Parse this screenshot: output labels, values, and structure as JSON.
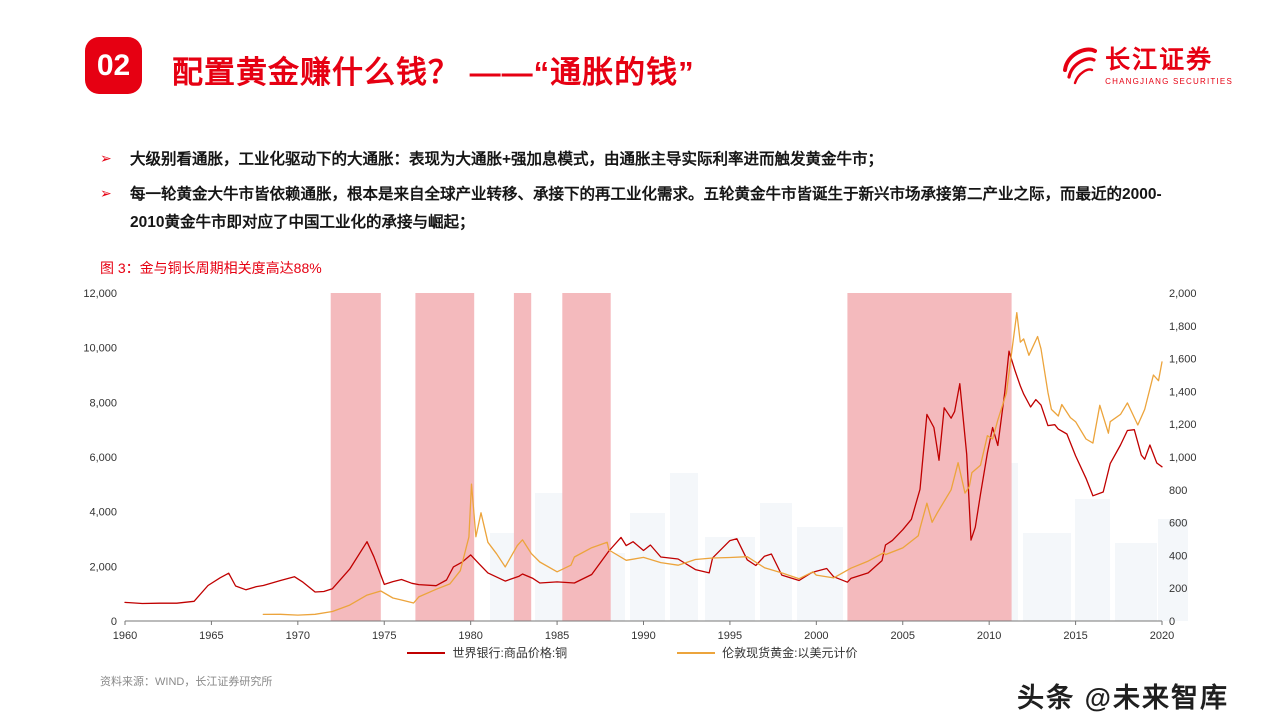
{
  "header": {
    "slide_number": "02",
    "title": "配置黄金赚什么钱？ ——“通胀的钱”",
    "logo": {
      "name": "长江证券",
      "subtitle": "CHANGJIANG SECURITIES"
    }
  },
  "bullet_marker": "➢",
  "bullets": [
    "大级别看通胀，工业化驱动下的大通胀：表现为大通胀+强加息模式，由通胀主导实际利率进而触发黄金牛市；",
    "每一轮黄金大牛市皆依赖通胀，根本是来自全球产业转移、承接下的再工业化需求。五轮黄金牛市皆诞生于新兴市场承接第二产业之际，而最近的2000-2010黄金牛市即对应了中国工业化的承接与崛起；"
  ],
  "figure": {
    "title": "图 3：金与铜长周期相关度高达88%"
  },
  "source": "资料来源：WIND，长江证券研究所",
  "watermark": "头条 @未来智库",
  "colors": {
    "accent_red": "#e60012",
    "copper_line": "#c00000",
    "gold_line": "#eca43c",
    "band_fill": "#f4babd"
  },
  "chart_data": {
    "type": "line",
    "title": "金与铜长周期相关度高达88%",
    "grid": false,
    "legend_position": "bottom",
    "x_axis": {
      "min": 1960,
      "max": 2020,
      "step": 5
    },
    "left_axis": {
      "min": 0,
      "max": 12000,
      "step": 2000
    },
    "right_axis": {
      "min": 0,
      "max": 2000,
      "step": 200
    },
    "band_color": "#f4babd",
    "bands": [
      [
        1971.9,
        1974.8
      ],
      [
        1976.8,
        1980.2
      ],
      [
        1982.5,
        1983.5
      ],
      [
        1985.3,
        1988.1
      ],
      [
        2001.8,
        2011.3
      ]
    ],
    "series": [
      {
        "key": "copper",
        "name": "世界银行:商品价格:铜",
        "axis": "left",
        "color": "#c00000",
        "data": [
          [
            1960,
            680
          ],
          [
            1961,
            640
          ],
          [
            1962,
            650
          ],
          [
            1963,
            650
          ],
          [
            1964,
            720
          ],
          [
            1964.8,
            1300
          ],
          [
            1965.5,
            1580
          ],
          [
            1966,
            1750
          ],
          [
            1966.4,
            1280
          ],
          [
            1967,
            1140
          ],
          [
            1967.6,
            1260
          ],
          [
            1968,
            1300
          ],
          [
            1969,
            1480
          ],
          [
            1969.8,
            1620
          ],
          [
            1970.3,
            1420
          ],
          [
            1971,
            1060
          ],
          [
            1971.5,
            1080
          ],
          [
            1972,
            1180
          ],
          [
            1973,
            1900
          ],
          [
            1974,
            2900
          ],
          [
            1974.4,
            2350
          ],
          [
            1975,
            1340
          ],
          [
            1975.5,
            1440
          ],
          [
            1976,
            1520
          ],
          [
            1976.6,
            1380
          ],
          [
            1977,
            1330
          ],
          [
            1978,
            1290
          ],
          [
            1978.6,
            1500
          ],
          [
            1979,
            1980
          ],
          [
            1979.5,
            2150
          ],
          [
            1980,
            2420
          ],
          [
            1980.5,
            2080
          ],
          [
            1981,
            1760
          ],
          [
            1982,
            1460
          ],
          [
            1982.8,
            1640
          ],
          [
            1983,
            1720
          ],
          [
            1983.6,
            1560
          ],
          [
            1984,
            1390
          ],
          [
            1985,
            1430
          ],
          [
            1986,
            1390
          ],
          [
            1987,
            1700
          ],
          [
            1988,
            2560
          ],
          [
            1988.7,
            3060
          ],
          [
            1989,
            2760
          ],
          [
            1989.4,
            2900
          ],
          [
            1990,
            2580
          ],
          [
            1990.4,
            2780
          ],
          [
            1991,
            2340
          ],
          [
            1992,
            2270
          ],
          [
            1993,
            1880
          ],
          [
            1993.8,
            1760
          ],
          [
            1994,
            2310
          ],
          [
            1995,
            2940
          ],
          [
            1995.4,
            3010
          ],
          [
            1996,
            2240
          ],
          [
            1996.5,
            2030
          ],
          [
            1997,
            2370
          ],
          [
            1997.4,
            2450
          ],
          [
            1998,
            1680
          ],
          [
            1999,
            1480
          ],
          [
            1999.7,
            1760
          ],
          [
            2000,
            1820
          ],
          [
            2000.6,
            1920
          ],
          [
            2001,
            1620
          ],
          [
            2001.8,
            1420
          ],
          [
            2002,
            1560
          ],
          [
            2003,
            1760
          ],
          [
            2003.8,
            2210
          ],
          [
            2004,
            2780
          ],
          [
            2004.4,
            2950
          ],
          [
            2005,
            3340
          ],
          [
            2005.5,
            3720
          ],
          [
            2006,
            4820
          ],
          [
            2006.4,
            7560
          ],
          [
            2006.8,
            7080
          ],
          [
            2007.1,
            5880
          ],
          [
            2007.4,
            7800
          ],
          [
            2007.8,
            7420
          ],
          [
            2008,
            7660
          ],
          [
            2008.3,
            8680
          ],
          [
            2008.7,
            6100
          ],
          [
            2008.95,
            2960
          ],
          [
            2009.2,
            3430
          ],
          [
            2009.5,
            4640
          ],
          [
            2009.9,
            6150
          ],
          [
            2010.2,
            7080
          ],
          [
            2010.5,
            6420
          ],
          [
            2010.9,
            8350
          ],
          [
            2011.15,
            9870
          ],
          [
            2011.5,
            9150
          ],
          [
            2011.8,
            8600
          ],
          [
            2012,
            8300
          ],
          [
            2012.4,
            7830
          ],
          [
            2012.7,
            8100
          ],
          [
            2013,
            7900
          ],
          [
            2013.4,
            7150
          ],
          [
            2013.8,
            7180
          ],
          [
            2014,
            7020
          ],
          [
            2014.5,
            6840
          ],
          [
            2015,
            6040
          ],
          [
            2015.6,
            5220
          ],
          [
            2016,
            4580
          ],
          [
            2016.6,
            4720
          ],
          [
            2017,
            5760
          ],
          [
            2017.6,
            6440
          ],
          [
            2018,
            6970
          ],
          [
            2018.4,
            7000
          ],
          [
            2018.8,
            6070
          ],
          [
            2019,
            5920
          ],
          [
            2019.3,
            6440
          ],
          [
            2019.7,
            5780
          ],
          [
            2020,
            5640
          ]
        ]
      },
      {
        "key": "gold",
        "name": "伦敦现货黄金:以美元计价",
        "axis": "right",
        "color": "#eca43c",
        "data": [
          [
            1968,
            40
          ],
          [
            1969,
            41
          ],
          [
            1970,
            36
          ],
          [
            1971,
            41
          ],
          [
            1972,
            58
          ],
          [
            1973,
            97
          ],
          [
            1974,
            158
          ],
          [
            1974.8,
            183
          ],
          [
            1975.5,
            140
          ],
          [
            1976,
            128
          ],
          [
            1976.7,
            110
          ],
          [
            1977,
            147
          ],
          [
            1978,
            193
          ],
          [
            1978.8,
            226
          ],
          [
            1979.4,
            307
          ],
          [
            1979.9,
            512
          ],
          [
            1980.05,
            835
          ],
          [
            1980.3,
            514
          ],
          [
            1980.6,
            660
          ],
          [
            1981,
            480
          ],
          [
            1981.5,
            410
          ],
          [
            1982,
            330
          ],
          [
            1982.7,
            460
          ],
          [
            1983,
            495
          ],
          [
            1983.5,
            412
          ],
          [
            1984,
            360
          ],
          [
            1985,
            300
          ],
          [
            1985.8,
            340
          ],
          [
            1986,
            390
          ],
          [
            1987,
            447
          ],
          [
            1987.9,
            480
          ],
          [
            1988,
            433
          ],
          [
            1989,
            370
          ],
          [
            1990,
            388
          ],
          [
            1991,
            356
          ],
          [
            1992,
            340
          ],
          [
            1993,
            375
          ],
          [
            1994,
            384
          ],
          [
            1995,
            387
          ],
          [
            1996,
            392
          ],
          [
            1997,
            325
          ],
          [
            1998,
            293
          ],
          [
            1999,
            258
          ],
          [
            1999.8,
            300
          ],
          [
            2000,
            280
          ],
          [
            2001,
            263
          ],
          [
            2002,
            322
          ],
          [
            2003,
            365
          ],
          [
            2003.9,
            416
          ],
          [
            2004,
            405
          ],
          [
            2005,
            446
          ],
          [
            2005.9,
            520
          ],
          [
            2006,
            565
          ],
          [
            2006.4,
            718
          ],
          [
            2006.7,
            602
          ],
          [
            2007,
            660
          ],
          [
            2007.8,
            800
          ],
          [
            2008.2,
            965
          ],
          [
            2008.6,
            780
          ],
          [
            2008.85,
            820
          ],
          [
            2009,
            905
          ],
          [
            2009.5,
            950
          ],
          [
            2009.9,
            1130
          ],
          [
            2010.2,
            1110
          ],
          [
            2010.5,
            1225
          ],
          [
            2011,
            1390
          ],
          [
            2011.6,
            1880
          ],
          [
            2011.8,
            1700
          ],
          [
            2012,
            1720
          ],
          [
            2012.3,
            1620
          ],
          [
            2012.8,
            1735
          ],
          [
            2013,
            1660
          ],
          [
            2013.4,
            1395
          ],
          [
            2013.6,
            1290
          ],
          [
            2014,
            1250
          ],
          [
            2014.2,
            1320
          ],
          [
            2014.7,
            1240
          ],
          [
            2015,
            1215
          ],
          [
            2015.6,
            1110
          ],
          [
            2016,
            1085
          ],
          [
            2016.4,
            1315
          ],
          [
            2016.9,
            1145
          ],
          [
            2017,
            1215
          ],
          [
            2017.6,
            1260
          ],
          [
            2018,
            1330
          ],
          [
            2018.6,
            1195
          ],
          [
            2019,
            1290
          ],
          [
            2019.5,
            1500
          ],
          [
            2019.8,
            1465
          ],
          [
            2020,
            1580
          ]
        ]
      }
    ]
  }
}
